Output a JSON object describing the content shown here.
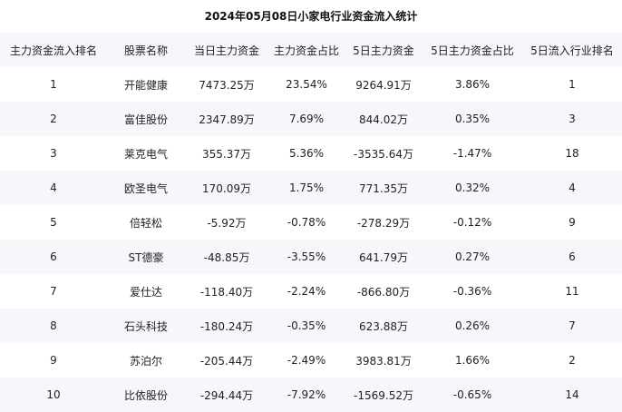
{
  "title": "2024年05月08日小家电行业资金流入统计",
  "columns": [
    "主力资金流入排名",
    "股票名称",
    "当日主力资金",
    "主力资金占比",
    "5日主力资金",
    "5日主力资金占比",
    "5日流入行业排名"
  ],
  "rows": [
    [
      "1",
      "开能健康",
      "7473.25万",
      "23.54%",
      "9264.91万",
      "3.86%",
      "1"
    ],
    [
      "2",
      "富佳股份",
      "2347.89万",
      "7.69%",
      "844.02万",
      "0.35%",
      "3"
    ],
    [
      "3",
      "莱克电气",
      "355.37万",
      "5.36%",
      "-3535.64万",
      "-1.47%",
      "18"
    ],
    [
      "4",
      "欧圣电气",
      "170.09万",
      "1.75%",
      "771.35万",
      "0.32%",
      "4"
    ],
    [
      "5",
      "倍轻松",
      "-5.92万",
      "-0.78%",
      "-278.29万",
      "-0.12%",
      "9"
    ],
    [
      "6",
      "ST德豪",
      "-48.85万",
      "-3.55%",
      "641.79万",
      "0.27%",
      "6"
    ],
    [
      "7",
      "爱仕达",
      "-118.40万",
      "-2.24%",
      "-866.80万",
      "-0.36%",
      "11"
    ],
    [
      "8",
      "石头科技",
      "-180.24万",
      "-0.35%",
      "623.88万",
      "0.26%",
      "7"
    ],
    [
      "9",
      "苏泊尔",
      "-205.44万",
      "-2.49%",
      "3983.81万",
      "1.66%",
      "2"
    ],
    [
      "10",
      "比依股份",
      "-294.44万",
      "-7.92%",
      "-1569.52万",
      "-0.65%",
      "14"
    ]
  ]
}
